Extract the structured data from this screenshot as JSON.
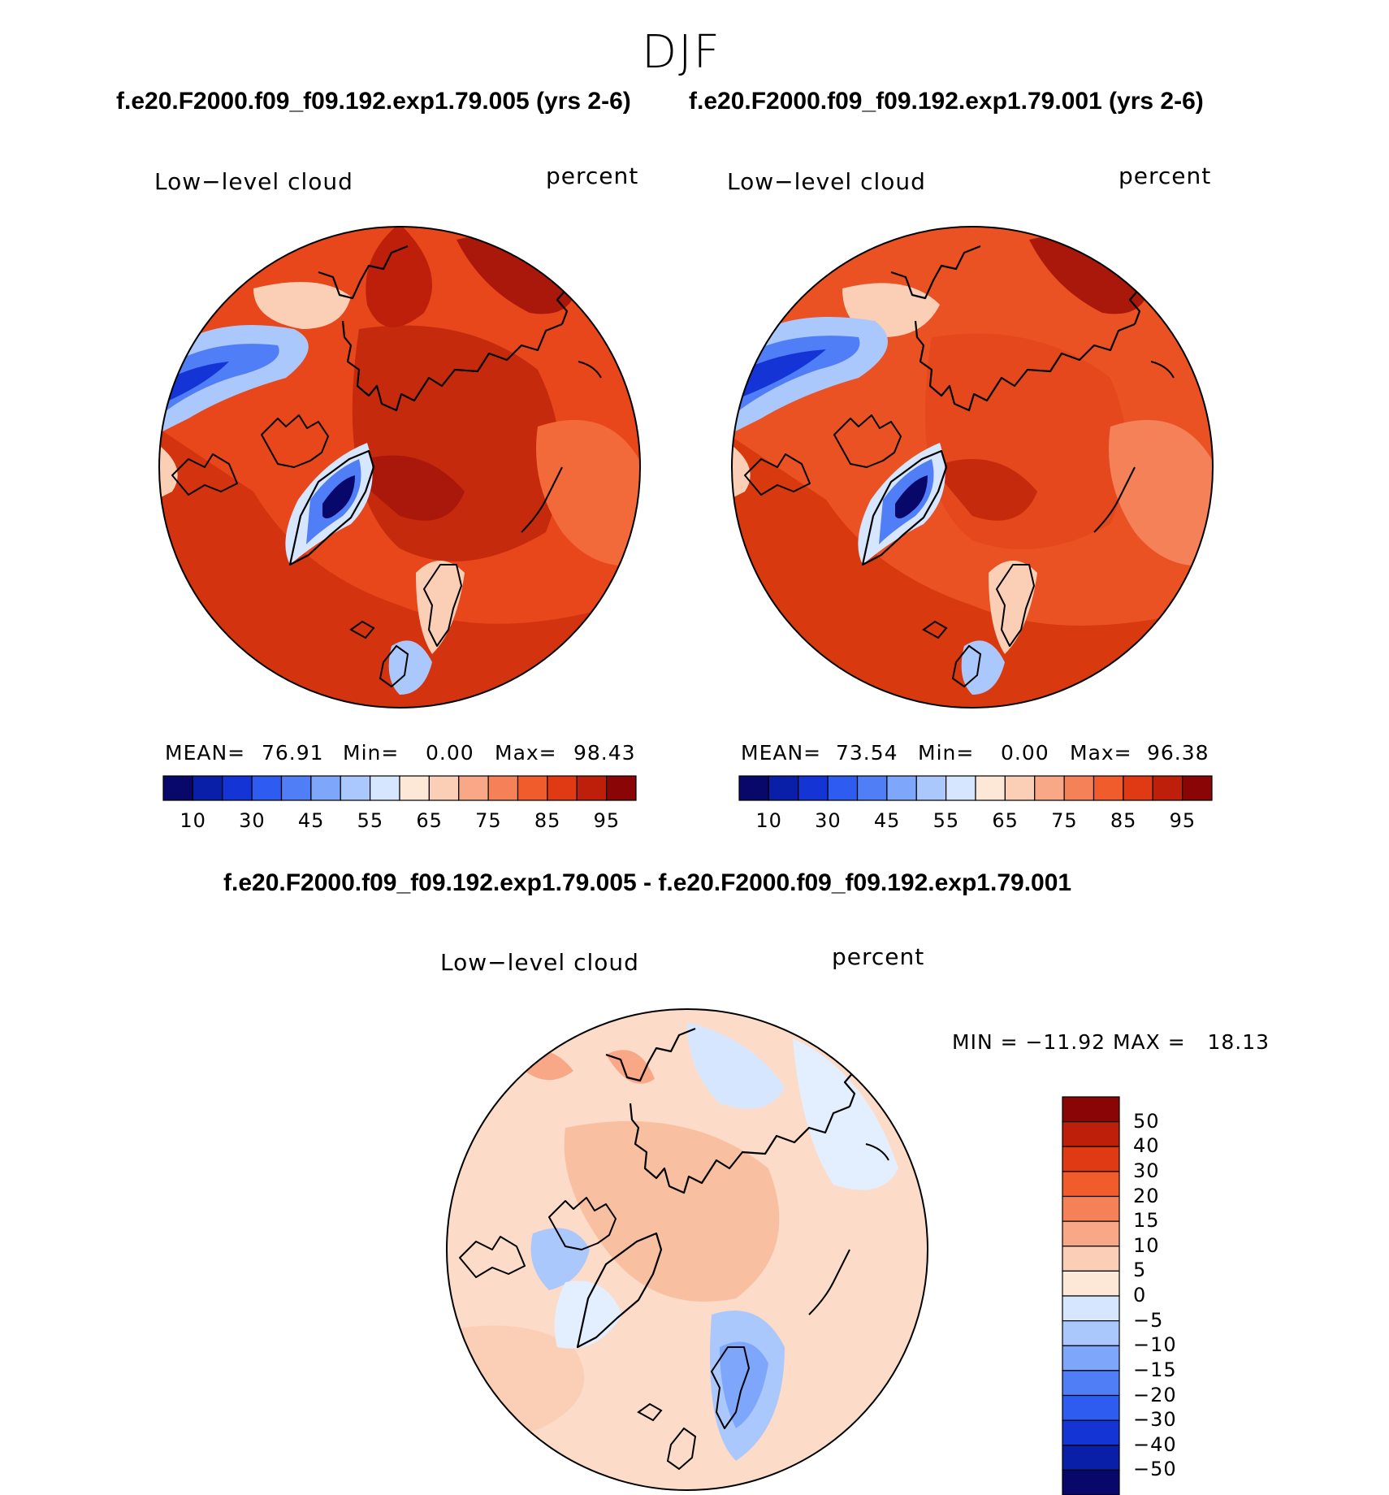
{
  "page": {
    "season": "DJF",
    "top_header_left": "f.e20.F2000.f09_f09.192.exp1.79.005 (yrs 2-6)",
    "top_header_right": "f.e20.F2000.f09_f09.192.exp1.79.001 (yrs 2-6)",
    "diff_header": "f.e20.F2000.f09_f09.192.exp1.79.005 - f.e20.F2000.f09_f09.192.exp1.79.001"
  },
  "panels": [
    {
      "variable": "Low−level cloud",
      "units": "percent",
      "mean_label": "MEAN=",
      "mean": "76.91",
      "min_label": "Min=",
      "min": "0.00",
      "max_label": "Max=",
      "max": "98.43",
      "mean_value": 76.91
    },
    {
      "variable": "Low−level cloud",
      "units": "percent",
      "mean_label": "MEAN=",
      "mean": "73.54",
      "min_label": "Min=",
      "min": "0.00",
      "max_label": "Max=",
      "max": "96.38",
      "mean_value": 73.54
    }
  ],
  "diff_panel": {
    "variable": "Low−level cloud",
    "units": "percent",
    "minmax": "MIN = −11.92 MAX =   18.13"
  },
  "colorbar_abs": {
    "labels": [
      "10",
      "30",
      "45",
      "55",
      "65",
      "75",
      "85",
      "95"
    ],
    "colors": [
      "#08086b",
      "#0a1fa8",
      "#1534d6",
      "#2e5bf0",
      "#4f7ef7",
      "#7ea6fb",
      "#abc8fd",
      "#d6e6fe",
      "#fde8d8",
      "#fbcfb6",
      "#f8a887",
      "#f58158",
      "#f05c2c",
      "#e03a14",
      "#bd1f0a",
      "#8a0505"
    ]
  },
  "colorbar_diff": {
    "labels": [
      "50",
      "40",
      "30",
      "20",
      "15",
      "10",
      "5",
      "0",
      "−5",
      "−10",
      "−15",
      "−20",
      "−30",
      "−40",
      "−50"
    ],
    "colors": [
      "#8a0505",
      "#bd1f0a",
      "#e03a14",
      "#f05c2c",
      "#f58158",
      "#f8a887",
      "#fbcfb6",
      "#fde8d8",
      "#d6e6fe",
      "#abc8fd",
      "#7ea6fb",
      "#4f7ef7",
      "#2e5bf0",
      "#1534d6",
      "#0a1fa8",
      "#08086b"
    ]
  },
  "colors": {
    "ocean_high": "#e8471c",
    "diff_background": "#fcdcc8",
    "coastline": "#000000"
  }
}
